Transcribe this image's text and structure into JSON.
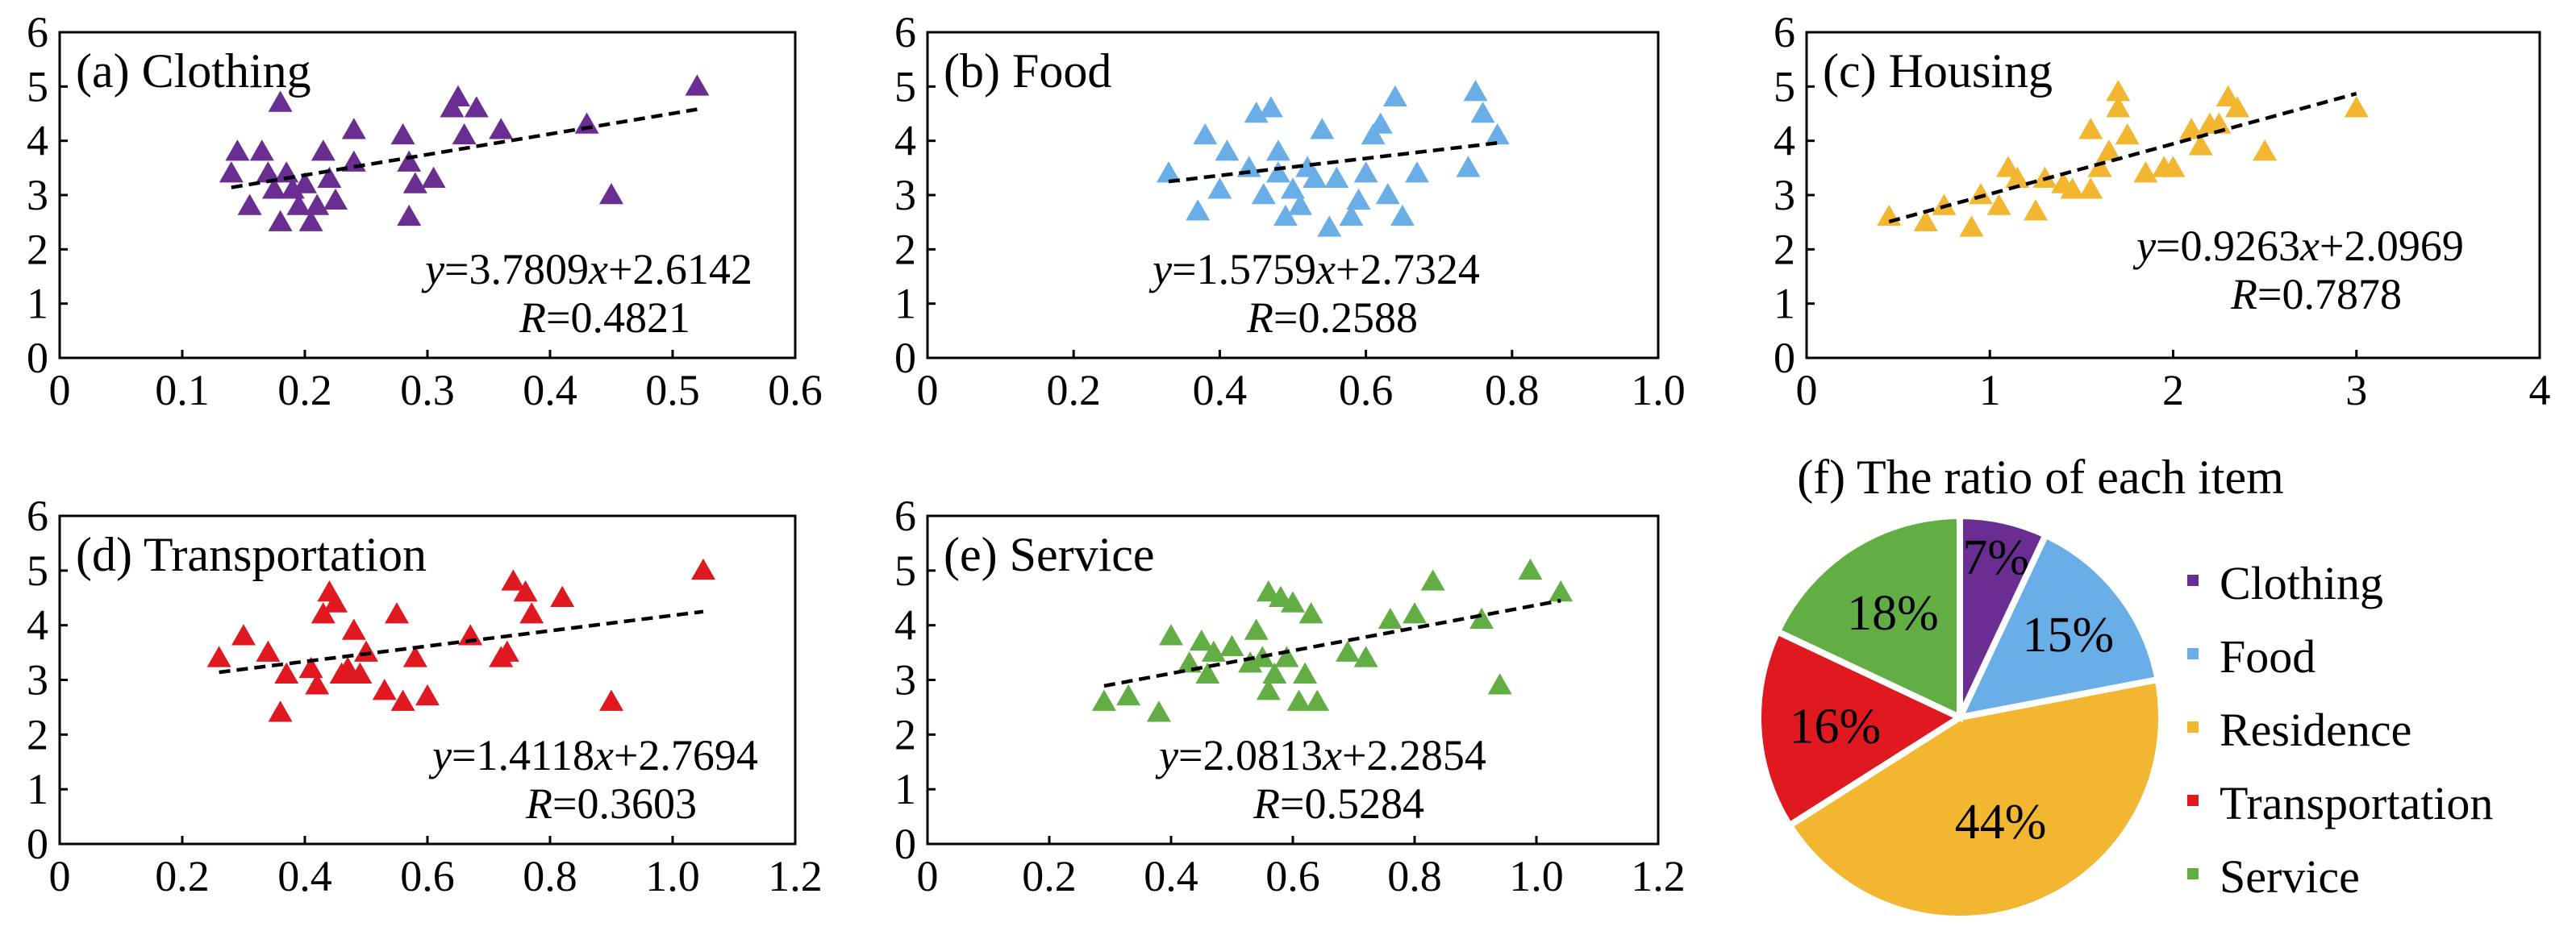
{
  "colors": {
    "clothing": "#6a2d91",
    "food": "#6aaee8",
    "housing": "#f2b630",
    "transportation": "#e0181f",
    "service": "#63ad45"
  },
  "chart_data": [
    {
      "type": "scatter",
      "title": "(a) Clothing",
      "color_key": "clothing",
      "xlim": [
        0,
        0.6
      ],
      "ylim": [
        0,
        6
      ],
      "xticks": [
        "0",
        "0.1",
        "0.2",
        "0.3",
        "0.4",
        "0.5",
        "0.6"
      ],
      "yticks": [
        "0",
        "1",
        "2",
        "3",
        "4",
        "5",
        "6"
      ],
      "x": [
        0.14,
        0.145,
        0.155,
        0.165,
        0.17,
        0.175,
        0.18,
        0.18,
        0.185,
        0.19,
        0.195,
        0.2,
        0.205,
        0.21,
        0.215,
        0.22,
        0.225,
        0.24,
        0.24,
        0.28,
        0.285,
        0.285,
        0.29,
        0.305,
        0.32,
        0.325,
        0.33,
        0.34,
        0.36,
        0.43,
        0.45,
        0.52
      ],
      "y": [
        3.4,
        3.8,
        2.8,
        3.8,
        3.4,
        3.1,
        2.5,
        4.7,
        3.4,
        3.1,
        2.8,
        3.2,
        2.5,
        2.8,
        3.8,
        3.3,
        2.9,
        3.6,
        4.2,
        4.1,
        2.6,
        3.6,
        3.2,
        3.3,
        4.6,
        4.8,
        4.1,
        4.6,
        4.2,
        4.3,
        3.0,
        5.0
      ],
      "fit": {
        "x": [
          0.14,
          0.52
        ],
        "y": [
          3.14,
          4.58
        ]
      },
      "equation": "y=3.7809x+2.6142",
      "r_label": "R=0.4821"
    },
    {
      "type": "scatter",
      "title": "(b) Food",
      "color_key": "food",
      "xlim": [
        0,
        1.0
      ],
      "ylim": [
        0,
        6
      ],
      "xticks": [
        "0",
        "0.2",
        "0.4",
        "0.6",
        "0.8",
        "1.0"
      ],
      "yticks": [
        "0",
        "1",
        "2",
        "3",
        "4",
        "5",
        "6"
      ],
      "x": [
        0.33,
        0.37,
        0.38,
        0.4,
        0.41,
        0.44,
        0.45,
        0.46,
        0.47,
        0.48,
        0.48,
        0.49,
        0.5,
        0.51,
        0.52,
        0.53,
        0.54,
        0.55,
        0.56,
        0.58,
        0.59,
        0.6,
        0.61,
        0.62,
        0.63,
        0.64,
        0.65,
        0.67,
        0.74,
        0.75,
        0.76,
        0.78
      ],
      "y": [
        3.4,
        2.7,
        4.1,
        3.1,
        3.8,
        3.5,
        4.5,
        3.0,
        4.6,
        3.8,
        3.4,
        2.6,
        3.1,
        2.8,
        3.5,
        3.3,
        4.2,
        2.4,
        3.3,
        2.6,
        2.9,
        3.4,
        4.1,
        4.3,
        3.0,
        4.8,
        2.6,
        3.4,
        3.5,
        4.9,
        4.5,
        4.1
      ],
      "fit": {
        "x": [
          0.33,
          0.78
        ],
        "y": [
          3.25,
          3.96
        ]
      },
      "equation": "y=1.5759x+2.7324",
      "r_label": "R=0.2588"
    },
    {
      "type": "scatter",
      "title": "(c) Housing",
      "color_key": "housing",
      "xlim": [
        0,
        4
      ],
      "ylim": [
        0,
        6
      ],
      "xticks": [
        "0",
        "1",
        "2",
        "3",
        "4"
      ],
      "yticks": [
        "0",
        "1",
        "2",
        "3",
        "4",
        "5",
        "6"
      ],
      "x": [
        0.45,
        0.65,
        0.75,
        0.9,
        0.95,
        1.05,
        1.1,
        1.15,
        1.25,
        1.3,
        1.4,
        1.45,
        1.55,
        1.55,
        1.6,
        1.65,
        1.7,
        1.7,
        1.75,
        1.85,
        1.95,
        2.0,
        2.1,
        2.15,
        2.2,
        2.25,
        2.3,
        2.35,
        2.5,
        3.0
      ],
      "y": [
        2.6,
        2.5,
        2.8,
        2.4,
        3.0,
        2.8,
        3.5,
        3.3,
        2.7,
        3.3,
        3.2,
        3.1,
        3.1,
        4.2,
        3.5,
        3.8,
        4.9,
        4.6,
        4.1,
        3.4,
        3.5,
        3.5,
        4.2,
        3.9,
        4.3,
        4.3,
        4.8,
        4.6,
        3.8,
        4.6
      ],
      "fit": {
        "x": [
          0.45,
          3.0
        ],
        "y": [
          2.51,
          4.87
        ]
      },
      "equation": "y=0.9263x+2.0969",
      "r_label": "R=0.7878"
    },
    {
      "type": "scatter",
      "title": "(d) Transportation",
      "color_key": "transportation",
      "xlim": [
        0,
        1.2
      ],
      "ylim": [
        0,
        6
      ],
      "xticks": [
        "0",
        "0.2",
        "0.4",
        "0.6",
        "0.8",
        "1.0",
        "1.2"
      ],
      "yticks": [
        "0",
        "1",
        "2",
        "3",
        "4",
        "5",
        "6"
      ],
      "x": [
        0.26,
        0.3,
        0.34,
        0.36,
        0.37,
        0.41,
        0.42,
        0.43,
        0.44,
        0.45,
        0.46,
        0.47,
        0.48,
        0.49,
        0.5,
        0.53,
        0.55,
        0.56,
        0.58,
        0.6,
        0.67,
        0.72,
        0.73,
        0.74,
        0.76,
        0.77,
        0.82,
        0.9,
        1.05
      ],
      "y": [
        3.4,
        3.8,
        3.5,
        2.4,
        3.1,
        3.2,
        2.9,
        4.2,
        4.6,
        4.4,
        3.1,
        3.2,
        3.9,
        3.1,
        3.5,
        2.8,
        4.2,
        2.6,
        3.4,
        2.7,
        3.8,
        3.4,
        3.5,
        4.8,
        4.6,
        4.2,
        4.5,
        2.6,
        5.0
      ],
      "fit": {
        "x": [
          0.26,
          1.05
        ],
        "y": [
          3.14,
          4.25
        ]
      },
      "equation": "y=1.4118x+2.7694",
      "r_label": "R=0.3603"
    },
    {
      "type": "scatter",
      "title": "(e) Service",
      "color_key": "service",
      "xlim": [
        0,
        1.2
      ],
      "ylim": [
        0,
        6
      ],
      "xticks": [
        "0",
        "0.2",
        "0.4",
        "0.6",
        "0.8",
        "1.0",
        "1.2"
      ],
      "yticks": [
        "0",
        "1",
        "2",
        "3",
        "4",
        "5",
        "6"
      ],
      "x": [
        0.29,
        0.33,
        0.38,
        0.4,
        0.43,
        0.45,
        0.46,
        0.47,
        0.5,
        0.53,
        0.54,
        0.55,
        0.56,
        0.56,
        0.57,
        0.58,
        0.59,
        0.6,
        0.61,
        0.62,
        0.63,
        0.64,
        0.69,
        0.72,
        0.76,
        0.8,
        0.83,
        0.91,
        0.94,
        0.99,
        1.04
      ],
      "y": [
        2.6,
        2.7,
        2.4,
        3.8,
        3.3,
        3.7,
        3.1,
        3.5,
        3.6,
        3.3,
        3.9,
        3.4,
        4.6,
        2.8,
        3.1,
        4.5,
        3.4,
        4.4,
        2.6,
        3.1,
        4.2,
        2.6,
        3.5,
        3.4,
        4.1,
        4.2,
        4.8,
        4.1,
        2.9,
        5.0,
        4.6
      ],
      "fit": {
        "x": [
          0.29,
          1.04
        ],
        "y": [
          2.89,
          4.45
        ]
      },
      "equation": "y=2.0813x+2.2854",
      "r_label": "R=0.5284"
    },
    {
      "type": "pie",
      "title": "(f) The ratio of each item",
      "slices": [
        {
          "label": "Clothing",
          "value": 7,
          "pct": "7%",
          "color_key": "clothing"
        },
        {
          "label": "Food",
          "value": 15,
          "pct": "15%",
          "color_key": "food"
        },
        {
          "label": "Residence",
          "value": 44,
          "pct": "44%",
          "color_key": "housing"
        },
        {
          "label": "Transportation",
          "value": 16,
          "pct": "16%",
          "color_key": "transportation"
        },
        {
          "label": "Service",
          "value": 18,
          "pct": "18%",
          "color_key": "service"
        }
      ],
      "legend_position": "right"
    }
  ]
}
